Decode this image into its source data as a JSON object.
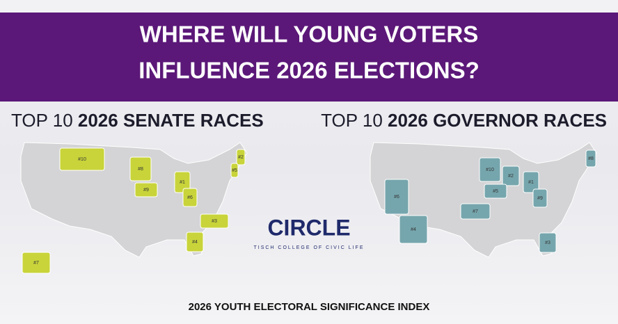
{
  "header": {
    "title_lines": [
      "WHERE WILL YOUNG VOTERS",
      "INFLUENCE 2026 ELECTIONS?"
    ]
  },
  "panels": [
    {
      "heading_prefix": "TOP 10",
      "heading": "2026 SENATE RACES",
      "states": [
        {
          "label": "#1"
        },
        {
          "label": "#2"
        },
        {
          "label": "#3"
        },
        {
          "label": "#4"
        },
        {
          "label": "#5"
        },
        {
          "label": "#6"
        },
        {
          "label": "#7"
        },
        {
          "label": "#8"
        },
        {
          "label": "#9"
        },
        {
          "label": "#10"
        }
      ]
    },
    {
      "heading_prefix": "TOP 10",
      "heading": "2026 GOVERNOR RACES",
      "states": [
        {
          "label": "#1"
        },
        {
          "label": "#2"
        },
        {
          "label": "#3"
        },
        {
          "label": "#4"
        },
        {
          "label": "#5"
        },
        {
          "label": "#6"
        },
        {
          "label": "#7"
        },
        {
          "label": "#8"
        },
        {
          "label": "#9"
        },
        {
          "label": "#10"
        }
      ]
    }
  ],
  "logo": {
    "name": "CIRCLE",
    "tagline": "TISCH COLLEGE OF CIVIC LIFE"
  },
  "footer": "2026 YOUTH ELECTORAL SIGNIFICANCE INDEX"
}
